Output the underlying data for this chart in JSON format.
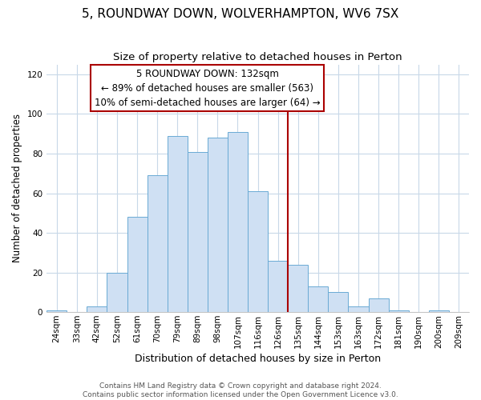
{
  "title": "5, ROUNDWAY DOWN, WOLVERHAMPTON, WV6 7SX",
  "subtitle": "Size of property relative to detached houses in Perton",
  "xlabel": "Distribution of detached houses by size in Perton",
  "ylabel": "Number of detached properties",
  "bar_labels": [
    "24sqm",
    "33sqm",
    "42sqm",
    "52sqm",
    "61sqm",
    "70sqm",
    "79sqm",
    "89sqm",
    "98sqm",
    "107sqm",
    "116sqm",
    "126sqm",
    "135sqm",
    "144sqm",
    "153sqm",
    "163sqm",
    "172sqm",
    "181sqm",
    "190sqm",
    "200sqm",
    "209sqm"
  ],
  "bar_values": [
    1,
    0,
    3,
    20,
    48,
    69,
    89,
    81,
    88,
    91,
    61,
    26,
    24,
    13,
    10,
    3,
    7,
    1,
    0,
    1,
    0
  ],
  "bar_color": "#cfe0f3",
  "bar_edgecolor": "#6aaad4",
  "vline_color": "#aa0000",
  "annotation_text": "5 ROUNDWAY DOWN: 132sqm\n← 89% of detached houses are smaller (563)\n10% of semi-detached houses are larger (64) →",
  "annotation_box_edgecolor": "#aa0000",
  "annotation_fontsize": 8.5,
  "ylim": [
    0,
    125
  ],
  "yticks": [
    0,
    20,
    40,
    60,
    80,
    100,
    120
  ],
  "footer1": "Contains HM Land Registry data © Crown copyright and database right 2024.",
  "footer2": "Contains public sector information licensed under the Open Government Licence v3.0.",
  "title_fontsize": 11,
  "subtitle_fontsize": 9.5,
  "xlabel_fontsize": 9,
  "ylabel_fontsize": 8.5,
  "tick_fontsize": 7.5,
  "footer_fontsize": 6.5,
  "grid_color": "#c8d8e8",
  "vline_bar_index": 12
}
